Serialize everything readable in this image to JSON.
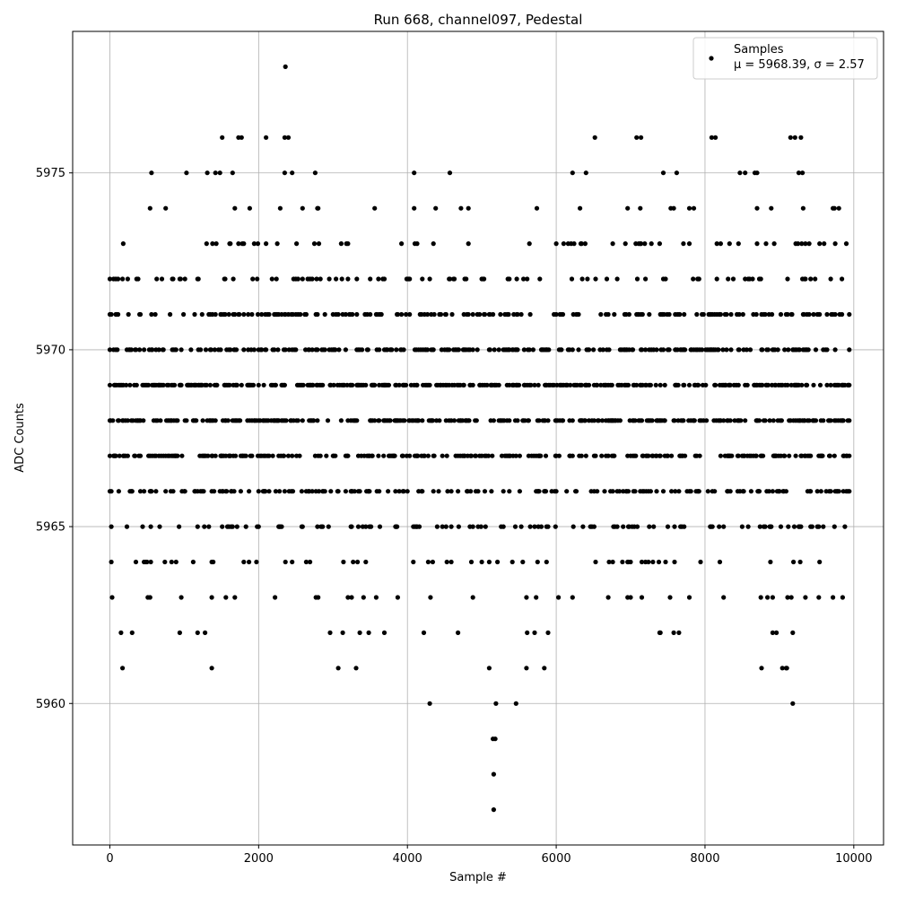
{
  "chart_data": {
    "type": "scatter",
    "title": "Run 668, channel097, Pedestal",
    "xlabel": "Sample #",
    "ylabel": "ADC Counts",
    "xlim": [
      -500,
      10400
    ],
    "ylim": [
      5956,
      5979
    ],
    "xticks": [
      0,
      2000,
      4000,
      6000,
      8000,
      10000
    ],
    "xtick_labels": [
      "0",
      "2000",
      "4000",
      "6000",
      "8000",
      "10000"
    ],
    "yticks": [
      5960,
      5965,
      5970,
      5975
    ],
    "ytick_labels": [
      "5960",
      "5965",
      "5970",
      "5975"
    ],
    "grid": true,
    "legend": {
      "placement": "top-right",
      "label_line1": "Samples",
      "label_line2": "μ = 5968.39, σ = 2.57"
    },
    "series": [
      {
        "name": "Samples",
        "color": "#000000",
        "mean": 5968.39,
        "sigma": 2.57,
        "n_samples": 10000,
        "level_ranges": [
          {
            "y": 5957,
            "x": [
              [
                5160,
                5160
              ]
            ]
          },
          {
            "y": 5958,
            "x": [
              [
                5160,
                5160
              ]
            ]
          },
          {
            "y": 5959,
            "x": [
              [
                5150,
                5180
              ]
            ]
          },
          {
            "y": 5960,
            "x": [
              [
                4300,
                4300
              ],
              [
                5190,
                5460
              ],
              [
                9180,
                9180
              ]
            ]
          },
          {
            "y": 5961,
            "x": [
              [
                170,
                170
              ],
              [
                1370,
                1370
              ],
              [
                3070,
                3070
              ],
              [
                3310,
                3310
              ],
              [
                5100,
                5600
              ],
              [
                5840,
                5840
              ],
              [
                8760,
                8760
              ],
              [
                9040,
                9100
              ]
            ]
          },
          {
            "y": 5962,
            "x": [
              [
                150,
                300
              ],
              [
                940,
                940
              ],
              [
                1180,
                1280
              ],
              [
                2960,
                3130
              ],
              [
                3360,
                3480
              ],
              [
                3690,
                4220
              ],
              [
                4680,
                5610
              ],
              [
                5710,
                5890
              ],
              [
                7390,
                7400
              ],
              [
                7580,
                7650
              ],
              [
                8910,
                8960
              ],
              [
                9180,
                9180
              ]
            ]
          },
          {
            "y": 5963,
            "x": [
              [
                30,
                540
              ],
              [
                960,
                1370
              ],
              [
                1560,
                1680
              ],
              [
                2220,
                2220
              ],
              [
                2770,
                3250
              ],
              [
                3410,
                3580
              ],
              [
                3870,
                4310
              ],
              [
                4880,
                5600
              ],
              [
                5730,
                6030
              ],
              [
                6220,
                6220
              ],
              [
                6700,
                7000
              ],
              [
                7150,
                7530
              ],
              [
                7790,
                7790
              ],
              [
                8250,
                8750
              ],
              [
                8840,
                8910
              ],
              [
                9110,
                9160
              ],
              [
                9350,
                9850
              ]
            ]
          },
          {
            "y": 5964,
            "x": [
              [
                20,
                550
              ],
              [
                740,
                1390
              ],
              [
                1800,
                1970
              ],
              [
                2360,
                2450
              ],
              [
                2640,
                9980
              ]
            ]
          },
          {
            "y": 5965,
            "x": [
              [
                20,
                9880
              ]
            ]
          },
          {
            "y": 5966,
            "x": [
              [
                0,
                9940
              ]
            ]
          },
          {
            "y": 5967,
            "x": [
              [
                0,
                9940
              ]
            ]
          },
          {
            "y": 5968,
            "x": [
              [
                0,
                9940
              ]
            ]
          },
          {
            "y": 5969,
            "x": [
              [
                0,
                9940
              ]
            ]
          },
          {
            "y": 5970,
            "x": [
              [
                0,
                9940
              ]
            ]
          },
          {
            "y": 5971,
            "x": [
              [
                0,
                9940
              ]
            ]
          },
          {
            "y": 5972,
            "x": [
              [
                0,
                4570
              ],
              [
                4620,
                5030
              ],
              [
                5350,
                5470
              ],
              [
                5560,
                9840
              ]
            ]
          },
          {
            "y": 5973,
            "x": [
              [
                180,
                3180
              ],
              [
                3200,
                4820
              ],
              [
                5640,
                6000
              ],
              [
                6100,
                9900
              ]
            ]
          },
          {
            "y": 5974,
            "x": [
              [
                540,
                2800
              ],
              [
                3560,
                3560
              ],
              [
                4090,
                4380
              ],
              [
                4720,
                4820
              ],
              [
                5740,
                5740
              ],
              [
                6320,
                7580
              ],
              [
                7790,
                8700
              ],
              [
                8890,
                9320
              ],
              [
                9720,
                9800
              ]
            ]
          },
          {
            "y": 5975,
            "x": [
              [
                560,
                560
              ],
              [
                1030,
                1030
              ],
              [
                1310,
                2450
              ],
              [
                2760,
                2760
              ],
              [
                4090,
                4090
              ],
              [
                4570,
                4570
              ],
              [
                6220,
                6220
              ],
              [
                6400,
                7440
              ],
              [
                7620,
                8540
              ],
              [
                8670,
                8700
              ],
              [
                9260,
                9310
              ]
            ]
          },
          {
            "y": 5976,
            "x": [
              [
                1510,
                1510
              ],
              [
                1730,
                1770
              ],
              [
                2100,
                2100
              ],
              [
                2350,
                2400
              ],
              [
                6520,
                6520
              ],
              [
                7080,
                7140
              ],
              [
                8090,
                8140
              ],
              [
                9150,
                9290
              ]
            ]
          },
          {
            "y": 5978,
            "x": [
              [
                2360,
                2360
              ]
            ]
          }
        ]
      }
    ]
  }
}
